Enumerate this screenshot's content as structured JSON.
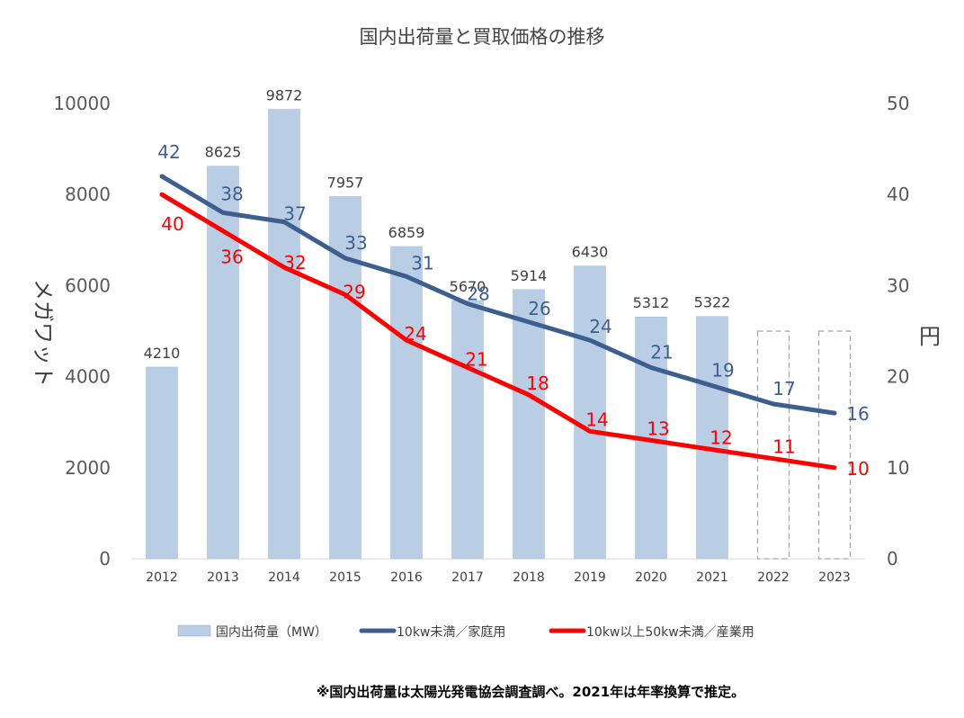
{
  "chart_data": {
    "type": "bar+line",
    "title": "国内出荷量と買取価格の推移",
    "categories": [
      "2012",
      "2013",
      "2014",
      "2015",
      "2016",
      "2017",
      "2018",
      "2019",
      "2020",
      "2021",
      "2022",
      "2023"
    ],
    "ylabel_left": "メガワット",
    "ylabel_right": "円",
    "ylim_left": [
      0,
      10000
    ],
    "ylim_right": [
      0,
      50
    ],
    "yticks_left": [
      "0",
      "2000",
      "4000",
      "6000",
      "8000",
      "10000"
    ],
    "yticks_right": [
      "0",
      "10",
      "20",
      "30",
      "40",
      "50"
    ],
    "bars": {
      "name": "国内出荷量（MW）",
      "values": [
        4210,
        8625,
        9872,
        7957,
        6859,
        5670,
        5914,
        6430,
        5312,
        5322,
        null,
        null
      ],
      "placeholder_categories": [
        "2022",
        "2023"
      ],
      "color": "#b9cde5"
    },
    "series": [
      {
        "name": "10kw未満／家庭用",
        "values": [
          42,
          38,
          37,
          33,
          31,
          28,
          26,
          24,
          21,
          19,
          17,
          16
        ],
        "color": "#3d5f8f"
      },
      {
        "name": "10kw以上50kw未満／産業用",
        "values": [
          40,
          36,
          32,
          29,
          24,
          21,
          18,
          14,
          13,
          12,
          11,
          10
        ],
        "color": "#ff0000"
      }
    ]
  },
  "footnote": "※国内出荷量は太陽光発電協会調査調べ。2021年は年率換算で推定。"
}
